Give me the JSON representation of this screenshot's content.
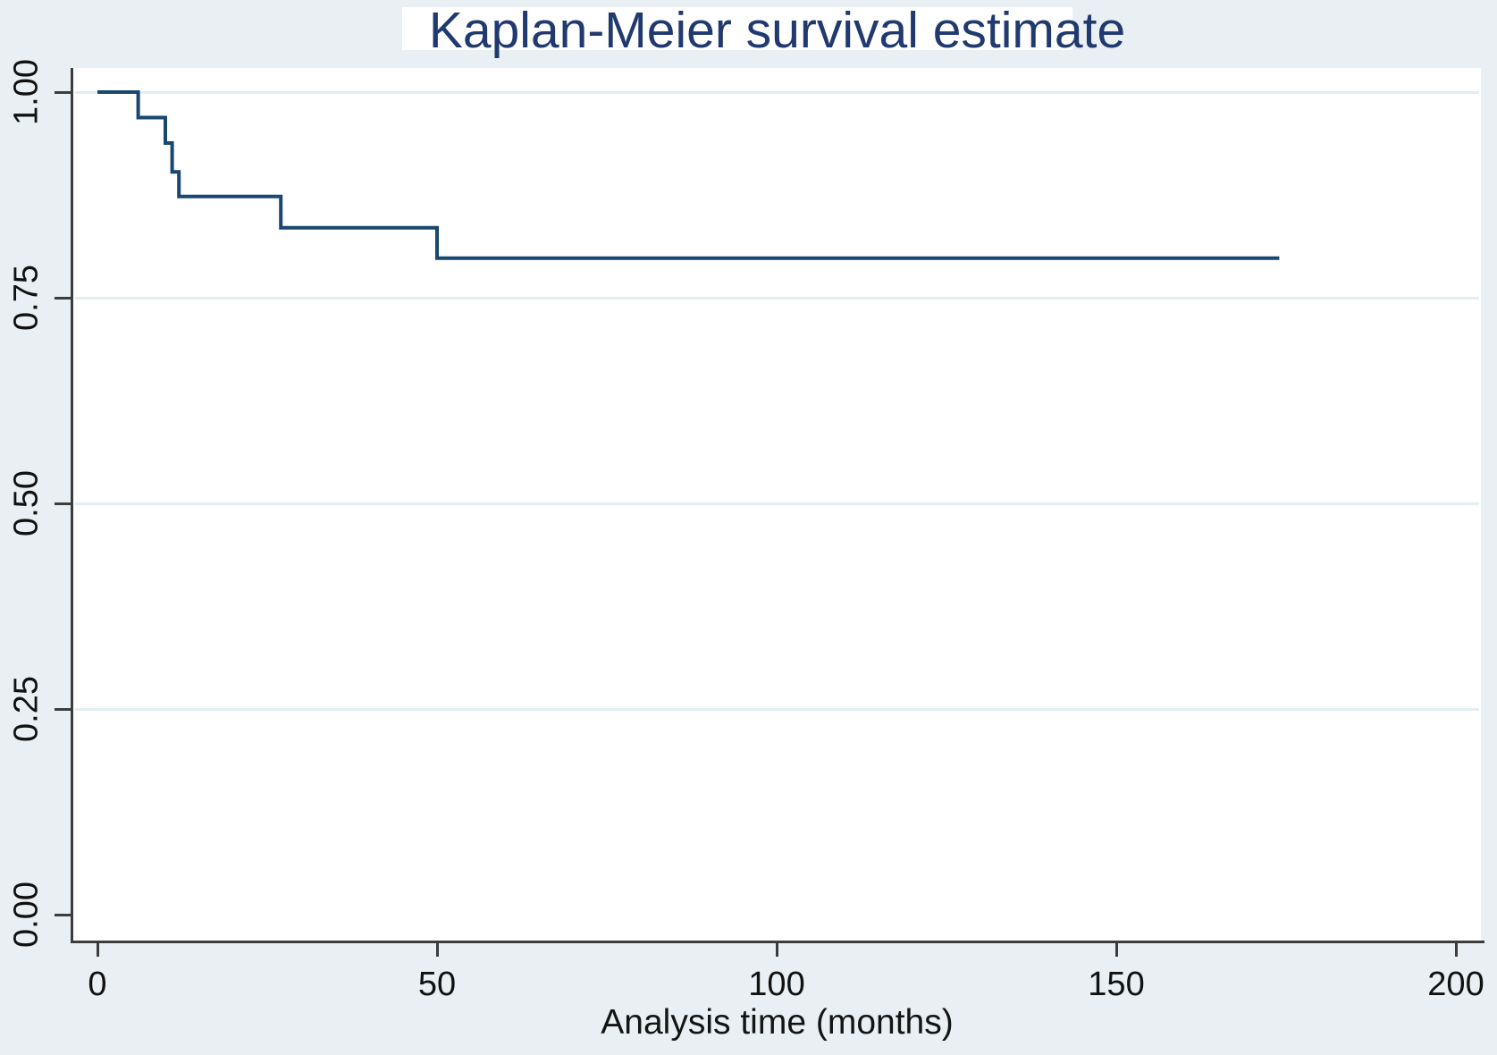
{
  "chart_data": {
    "type": "line",
    "chart_kind": "kaplan-meier-step-function",
    "title": "Kaplan-Meier survival estimate",
    "xlabel": "Analysis time (months)",
    "ylabel": "",
    "x_ticks": [
      0,
      50,
      100,
      150,
      200
    ],
    "x_tick_labels": [
      "0",
      "50",
      "100",
      "150",
      "200"
    ],
    "y_ticks": [
      0.0,
      0.25,
      0.5,
      0.75,
      1.0
    ],
    "y_tick_labels": [
      "0.00",
      "0.25",
      "0.50",
      "0.75",
      "1.00"
    ],
    "xlim": [
      0,
      204
    ],
    "ylim": [
      0,
      1.03
    ],
    "grid": "horizontal gridlines at 0.25, 0.50, 0.75, 1.00",
    "legend": "none",
    "series": [
      {
        "name": "survival estimate",
        "color": "#1a476f",
        "step_points": [
          {
            "t": 0,
            "s": 1.0
          },
          {
            "t": 6,
            "s": 1.0
          },
          {
            "t": 6,
            "s": 0.969
          },
          {
            "t": 10,
            "s": 0.969
          },
          {
            "t": 10,
            "s": 0.938
          },
          {
            "t": 11,
            "s": 0.938
          },
          {
            "t": 11,
            "s": 0.903
          },
          {
            "t": 12,
            "s": 0.903
          },
          {
            "t": 12,
            "s": 0.873
          },
          {
            "t": 27,
            "s": 0.873
          },
          {
            "t": 27,
            "s": 0.835
          },
          {
            "t": 50,
            "s": 0.835
          },
          {
            "t": 50,
            "s": 0.798
          },
          {
            "t": 174,
            "s": 0.798
          }
        ]
      }
    ],
    "colors": {
      "background": "#e9eff2",
      "plot_background": "#ffffff",
      "gridline": "#e4edf0",
      "axis": "#3c3c3c",
      "title_text": "#203a70",
      "tick_text": "#111111",
      "line": "#1a476f"
    }
  }
}
